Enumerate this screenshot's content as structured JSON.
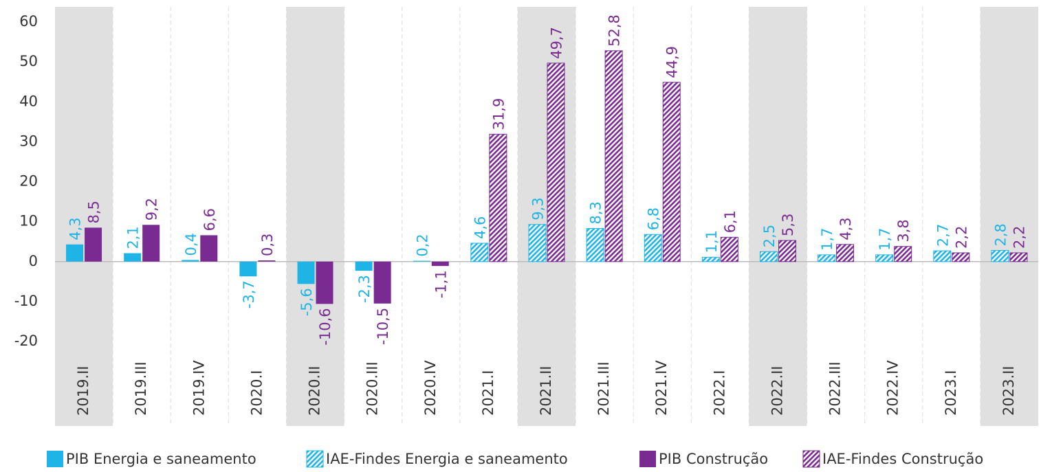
{
  "chart_data": {
    "type": "bar",
    "categories": [
      "2019.II",
      "2019.III",
      "2019.IV",
      "2020.I",
      "2020.II",
      "2020.III",
      "2020.IV",
      "2021.I",
      "2021.II",
      "2021.III",
      "2021.IV",
      "2022.I",
      "2022.II",
      "2022.III",
      "2022.IV",
      "2023.I",
      "2023.II"
    ],
    "highlighted": [
      0,
      4,
      8,
      12,
      16
    ],
    "series": [
      {
        "name": "PIB Energia e saneamento",
        "color": "#1fb4e6",
        "pattern": "solid",
        "values": [
          4.3,
          2.1,
          0.4,
          -3.7,
          -5.6,
          -2.3,
          0.2,
          null,
          null,
          null,
          null,
          null,
          null,
          null,
          null,
          null,
          null
        ],
        "value_labels": [
          "4,3",
          "2,1",
          "0,4",
          "-3,7",
          "-5,6",
          "-2,3",
          "0,2",
          null,
          null,
          null,
          null,
          null,
          null,
          null,
          null,
          null,
          null
        ]
      },
      {
        "name": "IAE-Findes Energia e saneamento",
        "color": "#1fb4e6",
        "pattern": "hatch",
        "values": [
          null,
          null,
          null,
          null,
          null,
          null,
          null,
          4.6,
          9.3,
          8.3,
          6.8,
          1.1,
          2.5,
          1.7,
          1.7,
          2.7,
          2.8
        ],
        "value_labels": [
          null,
          null,
          null,
          null,
          null,
          null,
          null,
          "4,6",
          "9,3",
          "8,3",
          "6,8",
          "1,1",
          "2,5",
          "1,7",
          "1,7",
          "2,7",
          "2,8"
        ]
      },
      {
        "name": "PIB Construção",
        "color": "#7a2b92",
        "pattern": "solid",
        "values": [
          8.5,
          9.2,
          6.6,
          0.3,
          -10.6,
          -10.5,
          -1.1,
          null,
          null,
          null,
          null,
          null,
          null,
          null,
          null,
          null,
          null
        ],
        "value_labels": [
          "8,5",
          "9,2",
          "6,6",
          "0,3",
          "-10,6",
          "-10,5",
          "-1,1",
          null,
          null,
          null,
          null,
          null,
          null,
          null,
          null,
          null,
          null
        ]
      },
      {
        "name": "IAE-Findes Construção",
        "color": "#7a2b92",
        "pattern": "hatch",
        "values": [
          null,
          null,
          null,
          null,
          null,
          null,
          null,
          31.9,
          49.7,
          52.8,
          44.9,
          6.1,
          5.3,
          4.3,
          3.8,
          2.2,
          2.2
        ],
        "value_labels": [
          null,
          null,
          null,
          null,
          null,
          null,
          null,
          "31,9",
          "49,7",
          "52,8",
          "44,9",
          "6,1",
          "5,3",
          "4,3",
          "3,8",
          "2,2",
          "2,2"
        ]
      }
    ],
    "ylim": [
      -20,
      60
    ],
    "yticks": [
      -20,
      -10,
      0,
      10,
      20,
      30,
      40,
      50,
      60
    ],
    "legend": "bottom"
  }
}
